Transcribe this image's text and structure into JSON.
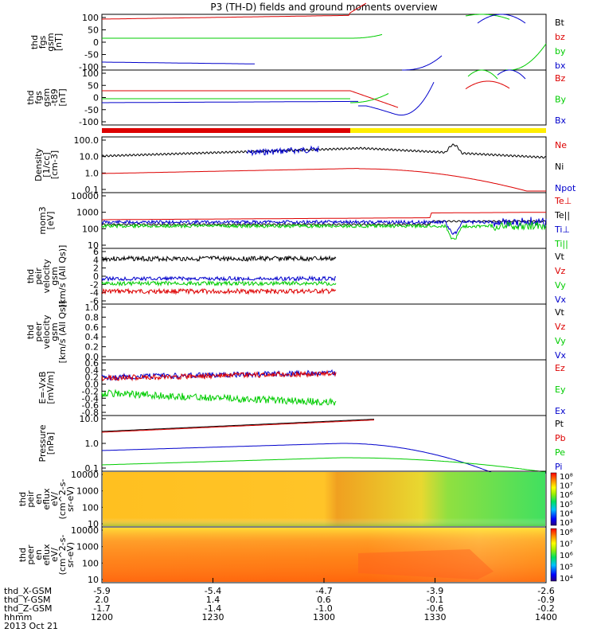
{
  "title": "P3 (TH-D) fields and ground moments overview",
  "colors": {
    "black": "#000000",
    "red": "#dd0000",
    "green": "#00cc00",
    "blue": "#0000cc",
    "yellow": "#ffee00"
  },
  "chart_data": [
    {
      "id": "p1",
      "type": "line",
      "ylabel": [
        "thd",
        "fgs",
        "gsm",
        "[nT]"
      ],
      "ticks": [
        "100",
        "50",
        "0",
        "-50",
        "-100"
      ],
      "ylim": [
        -100,
        100
      ],
      "legend": [
        {
          "text": "Bt",
          "color": "black"
        },
        {
          "text": "bz",
          "color": "red"
        },
        {
          "text": "by",
          "color": "green"
        },
        {
          "text": "bx",
          "color": "blue"
        }
      ]
    },
    {
      "id": "p2",
      "type": "line",
      "ylabel": [
        "thd",
        "fgs",
        "gsm",
        "-t89",
        "[nT]"
      ],
      "ticks": [
        "100",
        "50",
        "0",
        "-50",
        "-100"
      ],
      "ylim": [
        -100,
        100
      ],
      "legend": [
        {
          "text": "Bz",
          "color": "red"
        },
        {
          "text": "By",
          "color": "green"
        },
        {
          "text": "Bx",
          "color": "blue"
        }
      ]
    },
    {
      "id": "p3",
      "type": "line",
      "ylabel": [
        "Density",
        "[1/cc]",
        "[cm-3]"
      ],
      "ticks": [
        "100.0",
        "10.0",
        "1.0",
        "0.1"
      ],
      "ylog": true,
      "legend": [
        {
          "text": "Ne",
          "color": "red"
        },
        {
          "text": "Ni",
          "color": "black"
        },
        {
          "text": "Npot",
          "color": "blue"
        }
      ]
    },
    {
      "id": "p4",
      "type": "line",
      "ylabel": [
        "mom3",
        "[eV]"
      ],
      "ticks": [
        "10000",
        "1000",
        "100",
        "10"
      ],
      "ylog": true,
      "legend": [
        {
          "text": "Te⊥",
          "color": "red"
        },
        {
          "text": "Te||",
          "color": "black"
        },
        {
          "text": "Ti⊥",
          "color": "blue"
        },
        {
          "text": "Ti||",
          "color": "green"
        }
      ]
    },
    {
      "id": "p5",
      "type": "line",
      "ylabel": [
        "thd",
        "peir",
        "velocity",
        "gsm",
        "[km/s (All Qs)]"
      ],
      "ticks": [
        "6",
        "4",
        "2",
        "0",
        "-2",
        "-4",
        "-6"
      ],
      "ylim": [
        -6,
        6
      ],
      "legend": [
        {
          "text": "Vt",
          "color": "black"
        },
        {
          "text": "Vz",
          "color": "red"
        },
        {
          "text": "Vy",
          "color": "green"
        },
        {
          "text": "Vx",
          "color": "blue"
        }
      ]
    },
    {
      "id": "p6",
      "type": "line",
      "ylabel": [
        "thd",
        "peer",
        "velocity",
        "gsm",
        "[km/s (All Qs)]"
      ],
      "ticks": [
        "1.0",
        "0.8",
        "0.6",
        "0.4",
        "0.2",
        "0.0"
      ],
      "ylim": [
        0,
        1
      ],
      "legend": [
        {
          "text": "Vt",
          "color": "black"
        },
        {
          "text": "Vz",
          "color": "red"
        },
        {
          "text": "Vy",
          "color": "green"
        },
        {
          "text": "Vx",
          "color": "blue"
        }
      ]
    },
    {
      "id": "p7",
      "type": "line",
      "ylabel": [
        "E=-VxB",
        "[mV/m]"
      ],
      "ticks": [
        "0.6",
        "0.4",
        "0.2",
        "0.0",
        "-0.2",
        "-0.4",
        "-0.6",
        "-0.8"
      ],
      "ylim": [
        -0.8,
        0.6
      ],
      "legend": [
        {
          "text": "Ez",
          "color": "red"
        },
        {
          "text": "Ey",
          "color": "green"
        },
        {
          "text": "Ex",
          "color": "blue"
        }
      ]
    },
    {
      "id": "p8",
      "type": "line",
      "ylabel": [
        "Pressure",
        "[nPa]"
      ],
      "ticks": [
        "10.0",
        "1.0",
        "0.1"
      ],
      "ylog": true,
      "legend": [
        {
          "text": "Pt",
          "color": "black"
        },
        {
          "text": "Pb",
          "color": "red"
        },
        {
          "text": "Pe",
          "color": "green"
        },
        {
          "text": "Pi",
          "color": "blue"
        }
      ]
    },
    {
      "id": "p9",
      "type": "heatmap",
      "ylabel": [
        "thd",
        "peir",
        "en",
        "eflux",
        "eV/",
        "(cm^2-s-",
        "sr-eV)"
      ],
      "ticks": [
        "10000",
        "1000",
        "100",
        "10"
      ],
      "ylog": true,
      "colorbar": [
        "10⁸",
        "10⁷",
        "10⁶",
        "10⁵",
        "10⁴",
        "10³"
      ]
    },
    {
      "id": "p10",
      "type": "heatmap",
      "ylabel": [
        "thd",
        "peer",
        "en",
        "eflux",
        "eV/",
        "(cm^2-s-",
        "sr-eV)"
      ],
      "ticks": [
        "10000",
        "1000",
        "100",
        "10"
      ],
      "ylog": true,
      "colorbar": [
        "10⁸",
        "10⁷",
        "10⁶",
        "10⁵",
        "10⁴"
      ]
    }
  ],
  "x_axis": {
    "ephem_labels": [
      "thd_X-GSM",
      "thd_Y-GSM",
      "thd_Z-GSM",
      "hhmm",
      "2013 Oct 21"
    ],
    "columns": [
      {
        "x": "-5.9",
        "y": "2.0",
        "z": "-1.7",
        "t": "1200"
      },
      {
        "x": "-5.4",
        "y": "1.4",
        "z": "-1.4",
        "t": "1230"
      },
      {
        "x": "-4.7",
        "y": "0.6",
        "z": "-1.0",
        "t": "1300"
      },
      {
        "x": "-3.9",
        "y": "-0.1",
        "z": "-0.6",
        "t": "1330"
      },
      {
        "x": "-2.6",
        "y": "-0.9",
        "z": "-0.2",
        "t": "1400"
      }
    ]
  }
}
